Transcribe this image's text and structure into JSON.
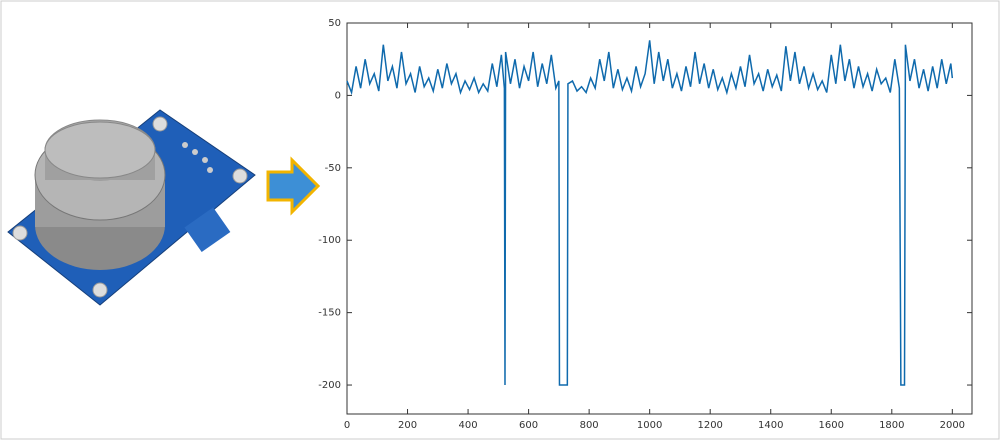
{
  "chart_data": {
    "type": "line",
    "color": "#0f6aad",
    "x": [
      0,
      15,
      30,
      45,
      60,
      75,
      90,
      105,
      120,
      135,
      150,
      165,
      180,
      195,
      210,
      225,
      240,
      255,
      270,
      285,
      300,
      315,
      330,
      345,
      360,
      375,
      390,
      405,
      420,
      435,
      450,
      465,
      480,
      495,
      510,
      520,
      522,
      524,
      540,
      555,
      570,
      585,
      600,
      615,
      630,
      645,
      660,
      675,
      690,
      700,
      702,
      728,
      730,
      745,
      760,
      775,
      790,
      805,
      820,
      835,
      850,
      865,
      880,
      895,
      910,
      925,
      940,
      955,
      970,
      985,
      1000,
      1015,
      1030,
      1045,
      1060,
      1075,
      1090,
      1105,
      1120,
      1135,
      1150,
      1165,
      1180,
      1195,
      1210,
      1225,
      1240,
      1255,
      1270,
      1285,
      1300,
      1315,
      1330,
      1345,
      1360,
      1375,
      1390,
      1405,
      1420,
      1435,
      1450,
      1465,
      1480,
      1495,
      1510,
      1525,
      1540,
      1555,
      1570,
      1585,
      1600,
      1615,
      1630,
      1645,
      1660,
      1675,
      1690,
      1705,
      1720,
      1735,
      1750,
      1765,
      1780,
      1795,
      1810,
      1825,
      1830,
      1842,
      1845,
      1860,
      1875,
      1890,
      1905,
      1920,
      1935,
      1950,
      1965,
      1980,
      1995,
      2000
    ],
    "values": [
      10,
      2,
      20,
      5,
      25,
      8,
      15,
      3,
      35,
      10,
      20,
      5,
      30,
      8,
      15,
      2,
      20,
      6,
      12,
      3,
      18,
      5,
      22,
      8,
      15,
      2,
      10,
      4,
      12,
      2,
      8,
      3,
      22,
      6,
      28,
      5,
      -200,
      30,
      8,
      25,
      5,
      20,
      10,
      30,
      6,
      22,
      8,
      28,
      5,
      10,
      -200,
      -200,
      8,
      10,
      3,
      6,
      2,
      12,
      5,
      25,
      10,
      30,
      5,
      18,
      4,
      12,
      3,
      20,
      6,
      15,
      38,
      8,
      30,
      10,
      25,
      5,
      15,
      3,
      20,
      6,
      30,
      8,
      22,
      5,
      18,
      4,
      12,
      2,
      15,
      5,
      20,
      6,
      28,
      8,
      15,
      3,
      18,
      6,
      14,
      3,
      34,
      10,
      30,
      8,
      20,
      5,
      15,
      4,
      10,
      2,
      28,
      8,
      35,
      10,
      25,
      5,
      20,
      6,
      15,
      3,
      18,
      8,
      12,
      2,
      25,
      5,
      -200,
      -200,
      35,
      10,
      25,
      5,
      18,
      3,
      20,
      5,
      25,
      8,
      22,
      12
    ],
    "xlim": [
      0,
      2065
    ],
    "ylim": [
      -220,
      50
    ],
    "xticks": [
      0,
      200,
      400,
      600,
      800,
      1000,
      1200,
      1400,
      1600,
      1800,
      2000
    ],
    "yticks": [
      -200,
      -150,
      -100,
      -50,
      0,
      50
    ]
  }
}
